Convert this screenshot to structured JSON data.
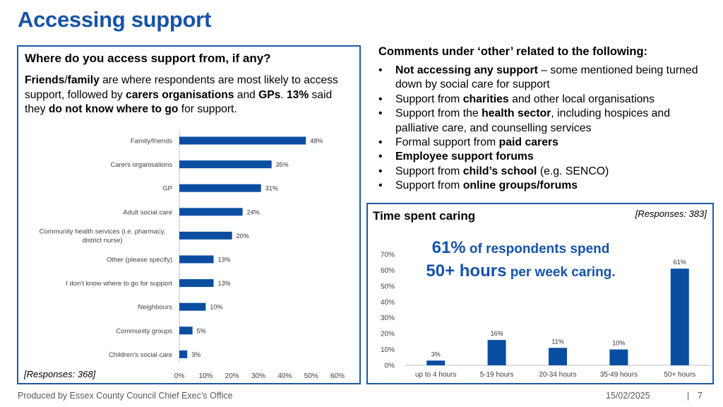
{
  "slide": {
    "title": "Accessing support",
    "footer_left": "Produced by Essex County Council Chief Exec’s Office",
    "date": "15/02/2025",
    "page_sep": "|",
    "page_number": "7"
  },
  "left_panel": {
    "heading": "Where do you access support from, if any?",
    "summary": {
      "p1_bold1": "Friends",
      "p1_t1": "/",
      "p1_bold2": "family",
      "p1_t2": " are where respondents are most likely to access support, followed by ",
      "p1_bold3": "carers organisations",
      "p1_t3": " and ",
      "p1_bold4": "GPs",
      "p1_t4": ". ",
      "p2_bold1": "13%",
      "p2_t1": " said they ",
      "p2_bold2": "do not know where to go",
      "p2_t2": " for support."
    },
    "responses": "[Responses: 368]"
  },
  "comments": {
    "title": "Comments under ‘other’ related to the following:",
    "items": [
      {
        "pre": "",
        "bold": "Not accessing any support",
        "post": " – some mentioned being turned down by social care for support"
      },
      {
        "pre": "Support from ",
        "bold": "charities",
        "post": " and other local organisations"
      },
      {
        "pre": "Support from the ",
        "bold": "health sector",
        "post": ", including hospices and palliative care, and counselling services"
      },
      {
        "pre": "Formal support from ",
        "bold": "paid carers",
        "post": ""
      },
      {
        "pre": "",
        "bold": "Employee support forums",
        "post": ""
      },
      {
        "pre": "Support from ",
        "bold": "child’s school",
        "post": " (e.g. SENCO)"
      },
      {
        "pre": "Support from ",
        "bold": "online groups/forums",
        "post": ""
      }
    ]
  },
  "right_panel": {
    "heading": "Time spent caring",
    "responses": "[Responses: 383]",
    "callout": {
      "l1_big": "61%",
      "l1_rest": " of respondents spend",
      "l2_big": "50+ hours",
      "l2_rest": " per week caring."
    }
  },
  "colors": {
    "accent": "#1553a8",
    "bar": "#0a4ea2",
    "border": "#1e5aa8"
  },
  "chart_data": [
    {
      "type": "bar",
      "orientation": "horizontal",
      "categories": [
        "Family/friends",
        "Carers organisations",
        "GP",
        "Adult social care",
        "Community health services (i.e. pharmacy, district nurse)",
        "Other (please specify)",
        "I don't know where to go for support",
        "Neighbours",
        "Community groups",
        "Children's social care"
      ],
      "category_lines": [
        [
          "Family/friends"
        ],
        [
          "Carers organisations"
        ],
        [
          "GP"
        ],
        [
          "Adult social care"
        ],
        [
          "Community health services (i.e. pharmacy,",
          "district nurse)"
        ],
        [
          "Other (please specify)"
        ],
        [
          "I don't know where to go for support"
        ],
        [
          "Neighbours"
        ],
        [
          "Community groups"
        ],
        [
          "Children's social care"
        ]
      ],
      "values": [
        48,
        35,
        31,
        24,
        20,
        13,
        13,
        10,
        5,
        3
      ],
      "data_labels": [
        "48%",
        "35%",
        "31%",
        "24%",
        "20%",
        "13%",
        "13%",
        "10%",
        "5%",
        "3%"
      ],
      "xticks": [
        "0%",
        "10%",
        "20%",
        "30%",
        "40%",
        "50%",
        "60%"
      ],
      "xlim": [
        0,
        60
      ],
      "grid": false,
      "title": "",
      "xlabel": "",
      "ylabel": ""
    },
    {
      "type": "bar",
      "orientation": "vertical",
      "categories": [
        "up to 4 hours",
        "5-19 hours",
        "20-34 hours",
        "35-49 hours",
        "50+ hours"
      ],
      "values": [
        3,
        16,
        11,
        10,
        61
      ],
      "data_labels": [
        "3%",
        "16%",
        "11%",
        "10%",
        "61%"
      ],
      "yticks": [
        "0%",
        "10%",
        "20%",
        "30%",
        "40%",
        "50%",
        "60%",
        "70%"
      ],
      "ylim": [
        0,
        70
      ],
      "grid": false,
      "title": "",
      "xlabel": "",
      "ylabel": ""
    }
  ]
}
